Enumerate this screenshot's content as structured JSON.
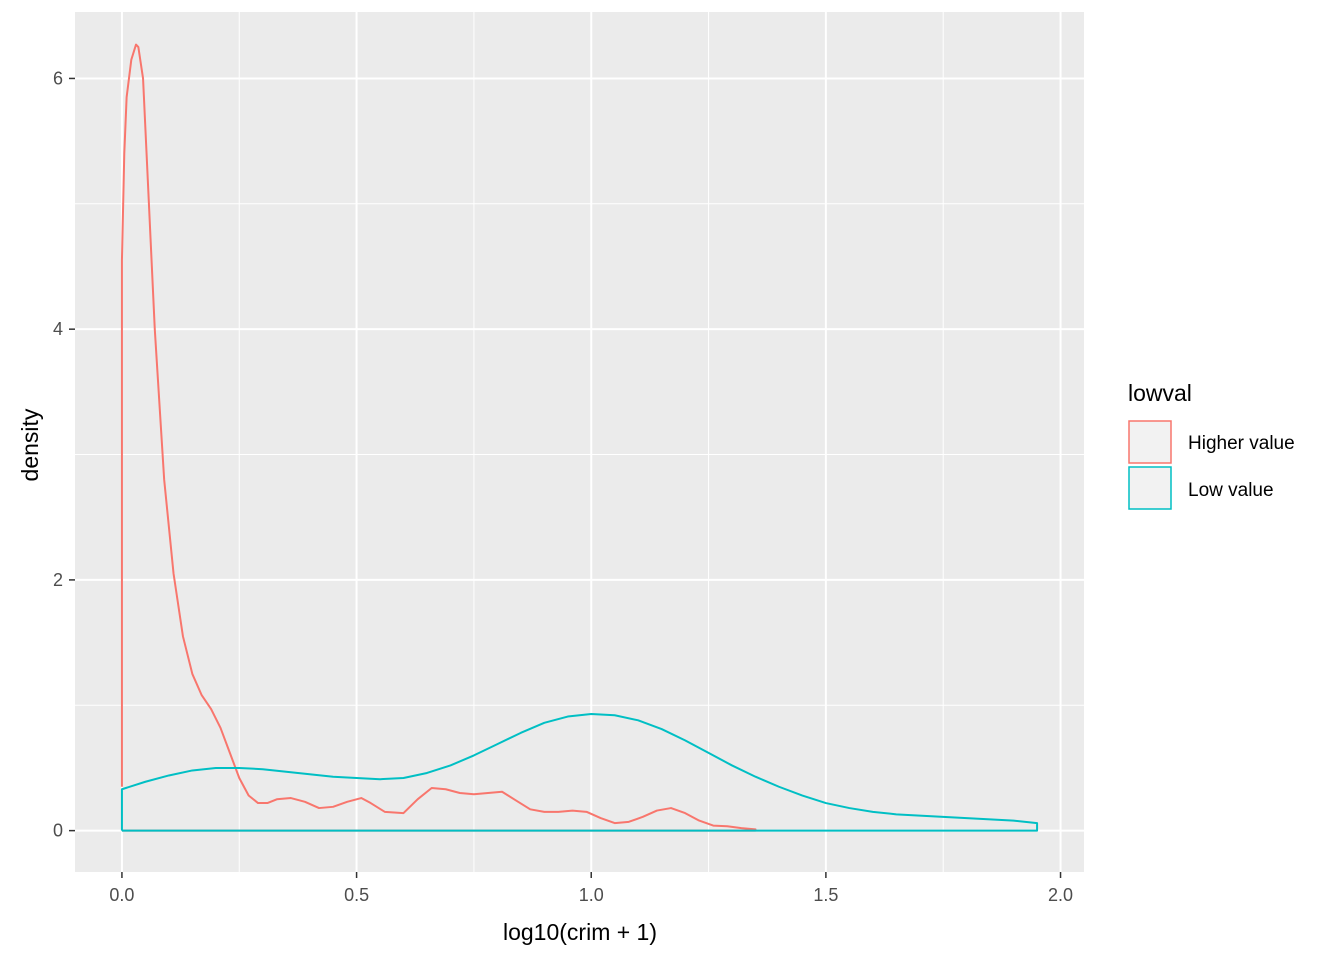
{
  "chart_data": {
    "type": "line",
    "subtype": "density",
    "xlabel": "log10(crim + 1)",
    "ylabel": "density",
    "xlim": [
      -0.1,
      2.05
    ],
    "ylim": [
      -0.33,
      6.53
    ],
    "x_ticks": [
      {
        "value": 0.0,
        "label": "0.0"
      },
      {
        "value": 0.5,
        "label": "0.5"
      },
      {
        "value": 1.0,
        "label": "1.0"
      },
      {
        "value": 1.5,
        "label": "1.5"
      },
      {
        "value": 2.0,
        "label": "2.0"
      }
    ],
    "y_ticks": [
      {
        "value": 0,
        "label": "0"
      },
      {
        "value": 2,
        "label": "2"
      },
      {
        "value": 4,
        "label": "4"
      },
      {
        "value": 6,
        "label": "6"
      }
    ],
    "grid": true,
    "panel_background": "#ebebeb",
    "legend": {
      "title": "lowval",
      "position": "right"
    },
    "series": [
      {
        "name": "Higher value",
        "color": "#F8766D",
        "x": [
          0.0,
          0.0,
          0.005,
          0.01,
          0.02,
          0.03,
          0.035,
          0.045,
          0.055,
          0.07,
          0.09,
          0.11,
          0.13,
          0.15,
          0.17,
          0.19,
          0.21,
          0.23,
          0.25,
          0.27,
          0.29,
          0.31,
          0.33,
          0.36,
          0.39,
          0.42,
          0.45,
          0.48,
          0.51,
          0.53,
          0.56,
          0.6,
          0.63,
          0.66,
          0.69,
          0.72,
          0.75,
          0.78,
          0.81,
          0.84,
          0.87,
          0.9,
          0.93,
          0.96,
          0.99,
          1.02,
          1.05,
          1.08,
          1.11,
          1.14,
          1.17,
          1.2,
          1.23,
          1.26,
          1.29,
          1.32,
          1.35,
          1.35,
          0.0
        ],
        "y": [
          0.35,
          4.55,
          5.4,
          5.85,
          6.15,
          6.27,
          6.25,
          6.0,
          5.2,
          4.0,
          2.8,
          2.05,
          1.55,
          1.25,
          1.08,
          0.97,
          0.82,
          0.62,
          0.42,
          0.28,
          0.22,
          0.22,
          0.25,
          0.26,
          0.23,
          0.18,
          0.19,
          0.23,
          0.26,
          0.22,
          0.15,
          0.14,
          0.25,
          0.34,
          0.33,
          0.3,
          0.29,
          0.3,
          0.31,
          0.24,
          0.17,
          0.15,
          0.15,
          0.16,
          0.15,
          0.1,
          0.06,
          0.07,
          0.11,
          0.16,
          0.18,
          0.14,
          0.08,
          0.04,
          0.035,
          0.02,
          0.01,
          0.0,
          0.0
        ]
      },
      {
        "name": "Low value",
        "color": "#00BFC4",
        "x": [
          0.0,
          0.0,
          0.05,
          0.1,
          0.15,
          0.2,
          0.25,
          0.3,
          0.35,
          0.4,
          0.45,
          0.5,
          0.55,
          0.6,
          0.65,
          0.7,
          0.75,
          0.8,
          0.85,
          0.9,
          0.95,
          1.0,
          1.05,
          1.1,
          1.15,
          1.2,
          1.25,
          1.3,
          1.35,
          1.4,
          1.45,
          1.5,
          1.55,
          1.6,
          1.65,
          1.7,
          1.75,
          1.8,
          1.85,
          1.9,
          1.95,
          1.95,
          0.0
        ],
        "y": [
          0.0,
          0.33,
          0.39,
          0.44,
          0.48,
          0.5,
          0.5,
          0.49,
          0.47,
          0.45,
          0.43,
          0.42,
          0.41,
          0.42,
          0.46,
          0.52,
          0.6,
          0.69,
          0.78,
          0.86,
          0.91,
          0.93,
          0.92,
          0.88,
          0.81,
          0.72,
          0.62,
          0.52,
          0.43,
          0.35,
          0.28,
          0.22,
          0.18,
          0.15,
          0.13,
          0.12,
          0.11,
          0.1,
          0.09,
          0.08,
          0.06,
          0.0,
          0.0
        ]
      }
    ]
  }
}
